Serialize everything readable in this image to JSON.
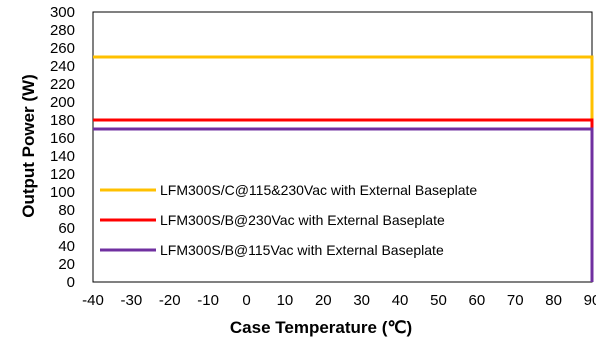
{
  "chart_data": {
    "type": "line",
    "title": "",
    "xlabel": "Case Temperature (℃)",
    "ylabel": "Output Power (W)",
    "xlim": [
      -40,
      90
    ],
    "ylim": [
      0,
      300
    ],
    "xticks": [
      "-40",
      "-30",
      "-20",
      "-10",
      "0",
      "10",
      "20",
      "30",
      "40",
      "50",
      "60",
      "70",
      "80",
      "90"
    ],
    "yticks": [
      "0",
      "20",
      "40",
      "60",
      "80",
      "100",
      "120",
      "140",
      "160",
      "180",
      "200",
      "220",
      "240",
      "260",
      "280",
      "300"
    ],
    "grid": false,
    "legend_position": "bottom-left",
    "series": [
      {
        "name": "LFM300S/C@115&230Vac with External Baseplate",
        "color": "#FFC000",
        "x": [
          -40,
          90,
          90
        ],
        "y": [
          250,
          250,
          0
        ]
      },
      {
        "name": "LFM300S/B@230Vac with External Baseplate",
        "color": "#FF0000",
        "x": [
          -40,
          90,
          90
        ],
        "y": [
          180,
          180,
          0
        ]
      },
      {
        "name": "LFM300S/B@115Vac with External Baseplate",
        "color": "#7030A0",
        "x": [
          -40,
          90,
          90
        ],
        "y": [
          170,
          170,
          0
        ]
      }
    ]
  }
}
